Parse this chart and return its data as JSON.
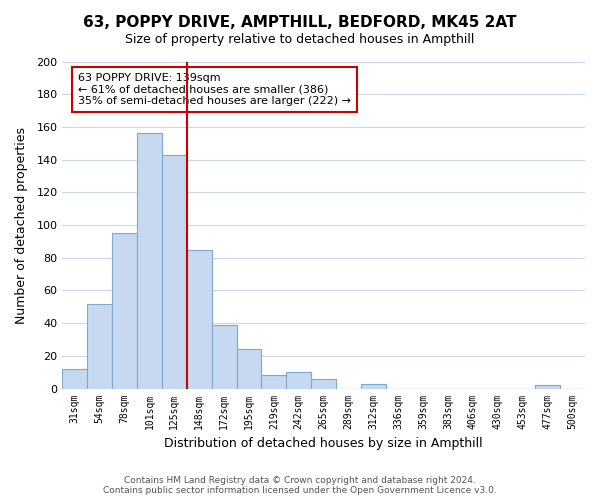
{
  "title": "63, POPPY DRIVE, AMPTHILL, BEDFORD, MK45 2AT",
  "subtitle": "Size of property relative to detached houses in Ampthill",
  "xlabel": "Distribution of detached houses by size in Ampthill",
  "ylabel": "Number of detached properties",
  "bin_labels": [
    "31sqm",
    "54sqm",
    "78sqm",
    "101sqm",
    "125sqm",
    "148sqm",
    "172sqm",
    "195sqm",
    "219sqm",
    "242sqm",
    "265sqm",
    "289sqm",
    "312sqm",
    "336sqm",
    "359sqm",
    "383sqm",
    "406sqm",
    "430sqm",
    "453sqm",
    "477sqm",
    "500sqm"
  ],
  "bar_values": [
    12,
    52,
    95,
    156,
    143,
    85,
    39,
    24,
    8,
    10,
    6,
    0,
    3,
    0,
    0,
    0,
    0,
    0,
    0,
    2,
    0
  ],
  "bar_color": "#c6d9f0",
  "bar_edge_color": "#7fa8d1",
  "vline_color": "#cc0000",
  "ylim": [
    0,
    200
  ],
  "yticks": [
    0,
    20,
    40,
    60,
    80,
    100,
    120,
    140,
    160,
    180,
    200
  ],
  "annotation_text": "63 POPPY DRIVE: 139sqm\n← 61% of detached houses are smaller (386)\n35% of semi-detached houses are larger (222) →",
  "annotation_box_edge": "#cc0000",
  "footer_text": "Contains HM Land Registry data © Crown copyright and database right 2024.\nContains public sector information licensed under the Open Government Licence v3.0.",
  "background_color": "#ffffff",
  "grid_color": "#c8d8e8"
}
